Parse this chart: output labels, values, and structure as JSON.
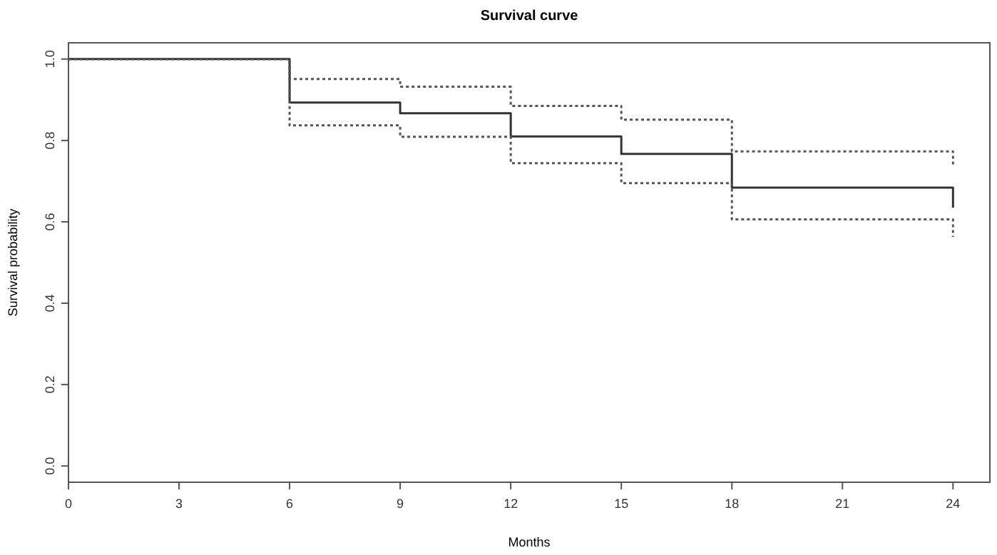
{
  "chart_data": {
    "type": "step",
    "title": "Survival curve",
    "xlabel": "Months",
    "ylabel": "Survival probability",
    "xlim": [
      0,
      25
    ],
    "ylim": [
      -0.04,
      1.04
    ],
    "xticks": [
      0,
      3,
      6,
      9,
      12,
      15,
      18,
      21,
      24
    ],
    "yticks": [
      {
        "value": 0,
        "label": "0.0"
      },
      0.2,
      0.4,
      0.6,
      0.8,
      {
        "value": 1,
        "label": "1.0"
      }
    ],
    "marker": "none",
    "series": [
      {
        "color": "#333333",
        "line_style": "solid",
        "x": [
          0,
          6,
          9,
          12,
          15,
          18,
          24,
          24
        ],
        "values": [
          1,
          0.893,
          0.867,
          0.81,
          0.767,
          0.684,
          0.684,
          0.635
        ]
      },
      {
        "color": "#555555",
        "line_style": "dotted",
        "x": [
          0,
          6,
          9,
          12,
          15,
          18,
          24,
          24
        ],
        "values": [
          1,
          0.951,
          0.932,
          0.885,
          0.851,
          0.773,
          0.773,
          0.735
        ]
      },
      {
        "color": "#555555",
        "line_style": "dotted",
        "x": [
          0,
          6,
          9,
          12,
          15,
          18,
          24,
          24
        ],
        "values": [
          1,
          0.837,
          0.809,
          0.744,
          0.695,
          0.606,
          0.606,
          0.563
        ]
      }
    ]
  }
}
